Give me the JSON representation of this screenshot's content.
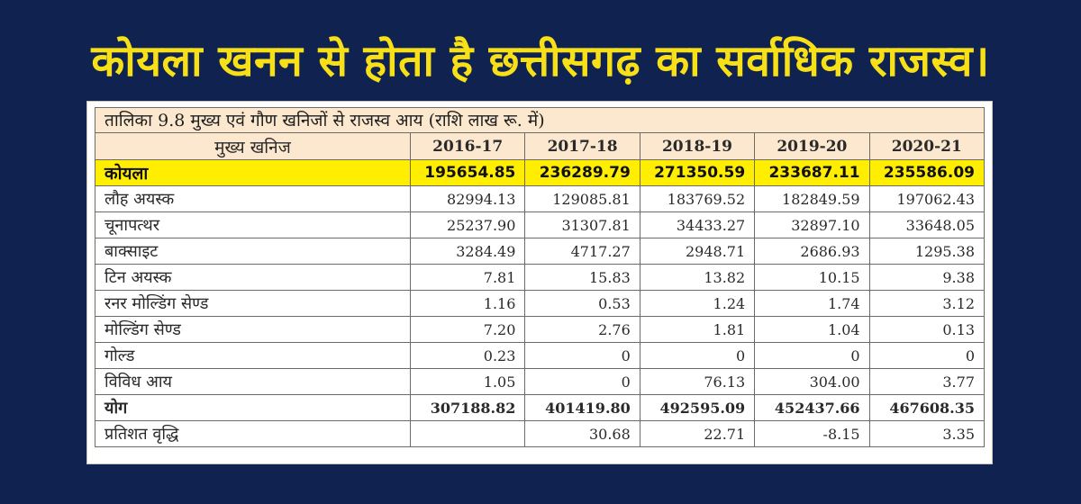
{
  "headline": "कोयला खनन से होता है छत्तीसगढ़ का सर्वाधिक राजस्व।",
  "table": {
    "caption": "तालिका 9.8 मुख्य एवं गौण खनिजों से राजस्व आय (राशि लाख रू. में)",
    "header": [
      "मुख्य खनिज",
      "2016-17",
      "2017-18",
      "2018-19",
      "2019-20",
      "2020-21"
    ],
    "rows": [
      {
        "label": "कोयला",
        "values": [
          "195654.85",
          "236289.79",
          "271350.59",
          "233687.11",
          "235586.09"
        ]
      },
      {
        "label": "लौह अयस्क",
        "values": [
          "82994.13",
          "129085.81",
          "183769.52",
          "182849.59",
          "197062.43"
        ]
      },
      {
        "label": "चूनापत्थर",
        "values": [
          "25237.90",
          "31307.81",
          "34433.27",
          "32897.10",
          "33648.05"
        ]
      },
      {
        "label": "बाक्साइट",
        "values": [
          "3284.49",
          "4717.27",
          "2948.71",
          "2686.93",
          "1295.38"
        ]
      },
      {
        "label": "टिन अयस्क",
        "values": [
          "7.81",
          "15.83",
          "13.82",
          "10.15",
          "9.38"
        ]
      },
      {
        "label": "रनर मोल्डिंग सेण्ड",
        "values": [
          "1.16",
          "0.53",
          "1.24",
          "1.74",
          "3.12"
        ]
      },
      {
        "label": "मोल्डिंग सेण्ड",
        "values": [
          "7.20",
          "2.76",
          "1.81",
          "1.04",
          "0.13"
        ]
      },
      {
        "label": "गोल्ड",
        "values": [
          "0.23",
          "0",
          "0",
          "0",
          "0"
        ]
      },
      {
        "label": "विविध आय",
        "values": [
          "1.05",
          "0",
          "76.13",
          "304.00",
          "3.77"
        ]
      },
      {
        "label": "योग",
        "values": [
          "307188.82",
          "401419.80",
          "492595.09",
          "452437.66",
          "467608.35"
        ]
      },
      {
        "label": "प्रतिशत वृद्धि",
        "values": [
          "",
          "30.68",
          "22.71",
          "-8.15",
          "3.35"
        ]
      }
    ]
  }
}
